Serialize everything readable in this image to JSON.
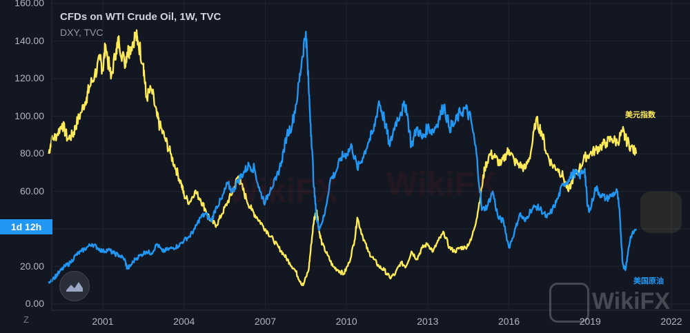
{
  "header": {
    "title": "CFDs on WTI Crude Oil, 1W, TVC",
    "subtitle": "DXY, TVC"
  },
  "interval_badge": "1d 12h",
  "colors": {
    "background": "#131722",
    "oil": "#2196f3",
    "dxy": "#ffeb5a",
    "grid": "#1f2433",
    "axis_text": "#b2b5be"
  },
  "watermark": {
    "text": "WikiFX"
  },
  "z_button": "Z",
  "chart_data": {
    "type": "line",
    "title": "CFDs on WTI Crude Oil, 1W, TVC",
    "xlabel": "",
    "ylabel": "",
    "ylim": [
      0,
      160
    ],
    "xlim": [
      1999.0,
      2022.5
    ],
    "y_ticks": [
      "0.00",
      "20.00",
      "40.00",
      "60.00",
      "80.00",
      "100.00",
      "120.00",
      "140.00",
      "160.00"
    ],
    "x_ticks": [
      "2001",
      "2004",
      "2007",
      "2010",
      "2013",
      "2016",
      "2019",
      "2022"
    ],
    "grid": true,
    "series": [
      {
        "name": "美元指数",
        "color": "#ffeb5a",
        "points": [
          [
            1999.0,
            80
          ],
          [
            1999.1,
            87
          ],
          [
            1999.3,
            90
          ],
          [
            1999.5,
            96
          ],
          [
            1999.7,
            88
          ],
          [
            1999.9,
            90
          ],
          [
            2000.0,
            95
          ],
          [
            2000.2,
            102
          ],
          [
            2000.4,
            110
          ],
          [
            2000.5,
            115
          ],
          [
            2000.7,
            122
          ],
          [
            2000.9,
            130
          ],
          [
            2001.0,
            125
          ],
          [
            2001.1,
            138
          ],
          [
            2001.3,
            120
          ],
          [
            2001.5,
            136
          ],
          [
            2001.6,
            140
          ],
          [
            2001.8,
            128
          ],
          [
            2001.9,
            134
          ],
          [
            2002.0,
            136
          ],
          [
            2002.2,
            143
          ],
          [
            2002.3,
            140
          ],
          [
            2002.5,
            128
          ],
          [
            2002.6,
            110
          ],
          [
            2002.8,
            114
          ],
          [
            2003.0,
            100
          ],
          [
            2003.1,
            95
          ],
          [
            2003.3,
            88
          ],
          [
            2003.5,
            80
          ],
          [
            2003.7,
            72
          ],
          [
            2003.9,
            64
          ],
          [
            2004.0,
            58
          ],
          [
            2004.2,
            54
          ],
          [
            2004.4,
            60
          ],
          [
            2004.6,
            56
          ],
          [
            2004.8,
            50
          ],
          [
            2005.0,
            44
          ],
          [
            2005.2,
            42
          ],
          [
            2005.4,
            48
          ],
          [
            2005.6,
            54
          ],
          [
            2005.8,
            60
          ],
          [
            2006.0,
            68
          ],
          [
            2006.1,
            64
          ],
          [
            2006.3,
            56
          ],
          [
            2006.5,
            50
          ],
          [
            2006.7,
            46
          ],
          [
            2006.9,
            42
          ],
          [
            2007.1,
            38
          ],
          [
            2007.3,
            34
          ],
          [
            2007.5,
            30
          ],
          [
            2007.7,
            26
          ],
          [
            2007.9,
            22
          ],
          [
            2008.1,
            18
          ],
          [
            2008.3,
            12
          ],
          [
            2008.4,
            10
          ],
          [
            2008.6,
            18
          ],
          [
            2008.7,
            32
          ],
          [
            2008.8,
            45
          ],
          [
            2008.9,
            50
          ],
          [
            2009.0,
            38
          ],
          [
            2009.1,
            32
          ],
          [
            2009.3,
            26
          ],
          [
            2009.5,
            20
          ],
          [
            2009.7,
            18
          ],
          [
            2009.9,
            16
          ],
          [
            2010.1,
            22
          ],
          [
            2010.3,
            34
          ],
          [
            2010.4,
            46
          ],
          [
            2010.6,
            36
          ],
          [
            2010.8,
            28
          ],
          [
            2011.0,
            24
          ],
          [
            2011.2,
            20
          ],
          [
            2011.4,
            18
          ],
          [
            2011.6,
            14
          ],
          [
            2011.8,
            16
          ],
          [
            2012.0,
            22
          ],
          [
            2012.2,
            20
          ],
          [
            2012.4,
            28
          ],
          [
            2012.6,
            24
          ],
          [
            2012.8,
            30
          ],
          [
            2013.0,
            32
          ],
          [
            2013.2,
            28
          ],
          [
            2013.4,
            34
          ],
          [
            2013.6,
            38
          ],
          [
            2013.8,
            30
          ],
          [
            2014.0,
            28
          ],
          [
            2014.2,
            30
          ],
          [
            2014.4,
            30
          ],
          [
            2014.6,
            34
          ],
          [
            2014.8,
            45
          ],
          [
            2015.0,
            62
          ],
          [
            2015.1,
            72
          ],
          [
            2015.3,
            80
          ],
          [
            2015.5,
            78
          ],
          [
            2015.7,
            74
          ],
          [
            2015.9,
            80
          ],
          [
            2016.0,
            82
          ],
          [
            2016.2,
            76
          ],
          [
            2016.4,
            74
          ],
          [
            2016.6,
            72
          ],
          [
            2016.8,
            80
          ],
          [
            2017.0,
            98
          ],
          [
            2017.2,
            92
          ],
          [
            2017.4,
            80
          ],
          [
            2017.6,
            74
          ],
          [
            2017.8,
            72
          ],
          [
            2018.0,
            68
          ],
          [
            2018.2,
            60
          ],
          [
            2018.4,
            68
          ],
          [
            2018.6,
            72
          ],
          [
            2018.8,
            78
          ],
          [
            2019.0,
            80
          ],
          [
            2019.2,
            82
          ],
          [
            2019.4,
            84
          ],
          [
            2019.6,
            86
          ],
          [
            2019.8,
            88
          ],
          [
            2020.0,
            86
          ],
          [
            2020.2,
            92
          ],
          [
            2020.3,
            88
          ],
          [
            2020.5,
            84
          ],
          [
            2020.7,
            80
          ]
        ]
      },
      {
        "name": "美国原油",
        "color": "#2196f3",
        "points": [
          [
            1999.0,
            12
          ],
          [
            1999.2,
            14
          ],
          [
            1999.4,
            17
          ],
          [
            1999.6,
            20
          ],
          [
            1999.8,
            22
          ],
          [
            2000.0,
            26
          ],
          [
            2000.2,
            28
          ],
          [
            2000.4,
            30
          ],
          [
            2000.6,
            32
          ],
          [
            2000.8,
            30
          ],
          [
            2001.0,
            28
          ],
          [
            2001.2,
            29
          ],
          [
            2001.4,
            27
          ],
          [
            2001.6,
            26
          ],
          [
            2001.8,
            24
          ],
          [
            2001.9,
            19
          ],
          [
            2002.0,
            20
          ],
          [
            2002.2,
            24
          ],
          [
            2002.4,
            26
          ],
          [
            2002.6,
            28
          ],
          [
            2002.8,
            27
          ],
          [
            2003.0,
            32
          ],
          [
            2003.2,
            28
          ],
          [
            2003.4,
            29
          ],
          [
            2003.6,
            30
          ],
          [
            2003.8,
            31
          ],
          [
            2004.0,
            34
          ],
          [
            2004.2,
            36
          ],
          [
            2004.4,
            40
          ],
          [
            2004.6,
            46
          ],
          [
            2004.8,
            48
          ],
          [
            2005.0,
            44
          ],
          [
            2005.2,
            52
          ],
          [
            2005.4,
            56
          ],
          [
            2005.6,
            64
          ],
          [
            2005.8,
            60
          ],
          [
            2006.0,
            66
          ],
          [
            2006.2,
            70
          ],
          [
            2006.4,
            74
          ],
          [
            2006.6,
            72
          ],
          [
            2006.8,
            60
          ],
          [
            2007.0,
            54
          ],
          [
            2007.2,
            62
          ],
          [
            2007.4,
            66
          ],
          [
            2007.6,
            76
          ],
          [
            2007.8,
            90
          ],
          [
            2008.0,
            96
          ],
          [
            2008.2,
            112
          ],
          [
            2008.35,
            130
          ],
          [
            2008.5,
            145
          ],
          [
            2008.6,
            116
          ],
          [
            2008.7,
            90
          ],
          [
            2008.8,
            62
          ],
          [
            2008.9,
            45
          ],
          [
            2009.0,
            40
          ],
          [
            2009.2,
            48
          ],
          [
            2009.4,
            66
          ],
          [
            2009.6,
            70
          ],
          [
            2009.8,
            78
          ],
          [
            2010.0,
            80
          ],
          [
            2010.2,
            84
          ],
          [
            2010.4,
            72
          ],
          [
            2010.6,
            78
          ],
          [
            2010.8,
            86
          ],
          [
            2011.0,
            92
          ],
          [
            2011.2,
            108
          ],
          [
            2011.4,
            98
          ],
          [
            2011.6,
            84
          ],
          [
            2011.8,
            96
          ],
          [
            2012.0,
            102
          ],
          [
            2012.2,
            106
          ],
          [
            2012.4,
            84
          ],
          [
            2012.6,
            94
          ],
          [
            2012.8,
            88
          ],
          [
            2013.0,
            94
          ],
          [
            2013.2,
            92
          ],
          [
            2013.4,
            98
          ],
          [
            2013.6,
            106
          ],
          [
            2013.8,
            94
          ],
          [
            2014.0,
            96
          ],
          [
            2014.2,
            102
          ],
          [
            2014.4,
            104
          ],
          [
            2014.6,
            98
          ],
          [
            2014.8,
            80
          ],
          [
            2015.0,
            50
          ],
          [
            2015.2,
            52
          ],
          [
            2015.4,
            60
          ],
          [
            2015.6,
            46
          ],
          [
            2015.8,
            44
          ],
          [
            2016.0,
            30
          ],
          [
            2016.2,
            38
          ],
          [
            2016.4,
            48
          ],
          [
            2016.6,
            44
          ],
          [
            2016.8,
            50
          ],
          [
            2017.0,
            52
          ],
          [
            2017.2,
            50
          ],
          [
            2017.4,
            46
          ],
          [
            2017.6,
            50
          ],
          [
            2017.8,
            56
          ],
          [
            2018.0,
            64
          ],
          [
            2018.2,
            66
          ],
          [
            2018.4,
            70
          ],
          [
            2018.6,
            68
          ],
          [
            2018.8,
            72
          ],
          [
            2018.9,
            52
          ],
          [
            2019.0,
            50
          ],
          [
            2019.2,
            62
          ],
          [
            2019.4,
            58
          ],
          [
            2019.6,
            56
          ],
          [
            2019.8,
            58
          ],
          [
            2020.0,
            60
          ],
          [
            2020.1,
            46
          ],
          [
            2020.2,
            22
          ],
          [
            2020.3,
            18
          ],
          [
            2020.4,
            28
          ],
          [
            2020.5,
            36
          ],
          [
            2020.7,
            40
          ]
        ]
      }
    ]
  }
}
